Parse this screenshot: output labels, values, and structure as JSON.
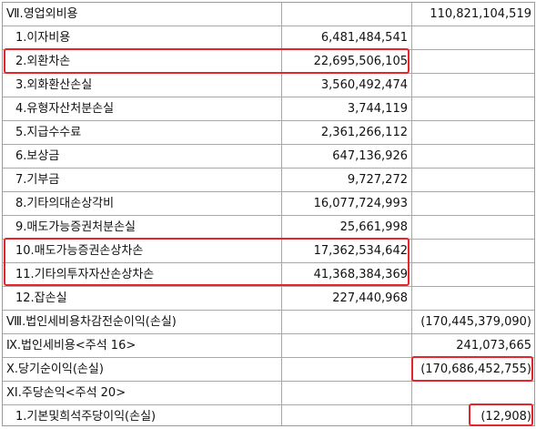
{
  "rows": [
    {
      "label": "Ⅶ.영업외비용",
      "amount1": "",
      "amount2": "110,821,104,519",
      "sub": false
    },
    {
      "label": "1.이자비용",
      "amount1": "6,481,484,541",
      "amount2": "",
      "sub": true
    },
    {
      "label": "2.외환차손",
      "amount1": "22,695,506,105",
      "amount2": "",
      "sub": true
    },
    {
      "label": "3.외화환산손실",
      "amount1": "3,560,492,474",
      "amount2": "",
      "sub": true
    },
    {
      "label": "4.유형자산처분손실",
      "amount1": "3,744,119",
      "amount2": "",
      "sub": true
    },
    {
      "label": "5.지급수수료",
      "amount1": "2,361,266,112",
      "amount2": "",
      "sub": true
    },
    {
      "label": "6.보상금",
      "amount1": "647,136,926",
      "amount2": "",
      "sub": true
    },
    {
      "label": "7.기부금",
      "amount1": "9,727,272",
      "amount2": "",
      "sub": true
    },
    {
      "label": "8.기타의대손상각비",
      "amount1": "16,077,724,993",
      "amount2": "",
      "sub": true
    },
    {
      "label": "9.매도가능증권처분손실",
      "amount1": "25,661,998",
      "amount2": "",
      "sub": true
    },
    {
      "label": "10.매도가능증권손상차손",
      "amount1": "17,362,534,642",
      "amount2": "",
      "sub": true
    },
    {
      "label": "11.기타의투자자산손상차손",
      "amount1": "41,368,384,369",
      "amount2": "",
      "sub": true
    },
    {
      "label": "12.잡손실",
      "amount1": "227,440,968",
      "amount2": "",
      "sub": true
    },
    {
      "label": "Ⅷ.법인세비용차감전순이익(손실)",
      "amount1": "",
      "amount2": "(170,445,379,090)",
      "sub": false
    },
    {
      "label": "Ⅸ.법인세비용<주석 16>",
      "amount1": "",
      "amount2": "241,073,665",
      "sub": false
    },
    {
      "label": "Ⅹ.당기순이익(손실)",
      "amount1": "",
      "amount2": "(170,686,452,755)",
      "sub": false
    },
    {
      "label": "ⅩⅠ.주당손익<주석 20>",
      "amount1": "",
      "amount2": "",
      "sub": false
    },
    {
      "label": "1.기본및희석주당이익(손실)",
      "amount1": "",
      "amount2": "(12,908)",
      "sub": true
    }
  ],
  "highlight_color": "#e8232a"
}
